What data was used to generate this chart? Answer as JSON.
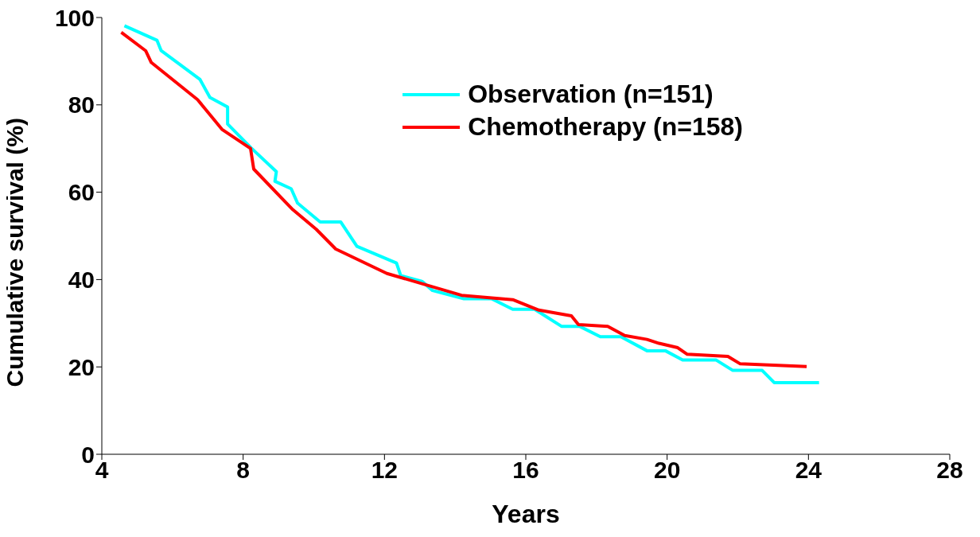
{
  "chart_data": {
    "type": "line",
    "xlabel": "Years",
    "ylabel": "Cumulative survival (%)",
    "xlim": [
      4,
      28
    ],
    "xticks": [
      4,
      8,
      12,
      16,
      20,
      24,
      28
    ],
    "ylim": [
      0,
      100
    ],
    "yticks": [
      0,
      20,
      40,
      60,
      80,
      100
    ],
    "grid": false,
    "legend": "top right",
    "marker": "none",
    "line_style": "solid",
    "series": [
      {
        "name": "Observation (n=151)",
        "color": "#00ffff",
        "x": [
          4.64,
          5.56,
          5.68,
          6.78,
          7.06,
          7.56,
          7.56,
          8.23,
          8.94,
          8.9,
          9.36,
          9.54,
          10.18,
          10.76,
          11.22,
          12.34,
          12.46,
          13.06,
          13.36,
          14.25,
          15.03,
          15.63,
          16.25,
          17.01,
          17.52,
          18.11,
          18.69,
          19.43,
          19.95,
          20.44,
          21.38,
          21.86,
          22.69,
          23.03,
          24.3
        ],
        "values": [
          98.1,
          94.8,
          92.4,
          85.8,
          81.7,
          79.5,
          75.6,
          70.1,
          64.7,
          62.5,
          60.8,
          57.5,
          53.2,
          53.2,
          47.6,
          43.8,
          40.9,
          39.6,
          37.5,
          35.6,
          35.6,
          33.2,
          33.2,
          29.3,
          29.3,
          26.9,
          26.9,
          23.7,
          23.7,
          21.6,
          21.6,
          19.2,
          19.2,
          16.4,
          16.4
        ]
      },
      {
        "name": "Chemotherapy (n=158)",
        "color": "#ff0000",
        "x": [
          4.55,
          5.24,
          5.4,
          6.71,
          7.4,
          8.21,
          8.3,
          9.38,
          10.07,
          10.62,
          12.07,
          14.18,
          15.63,
          16.37,
          17.29,
          17.49,
          18.32,
          18.8,
          19.43,
          19.77,
          20.3,
          20.57,
          21.72,
          22.07,
          23.95
        ],
        "values": [
          96.6,
          92.4,
          89.7,
          81.2,
          74.4,
          70.0,
          65.3,
          56.2,
          51.5,
          47.0,
          41.4,
          36.4,
          35.4,
          33.0,
          31.7,
          29.7,
          29.3,
          27.2,
          26.3,
          25.4,
          24.4,
          22.9,
          22.4,
          20.7,
          20.1
        ]
      }
    ]
  }
}
